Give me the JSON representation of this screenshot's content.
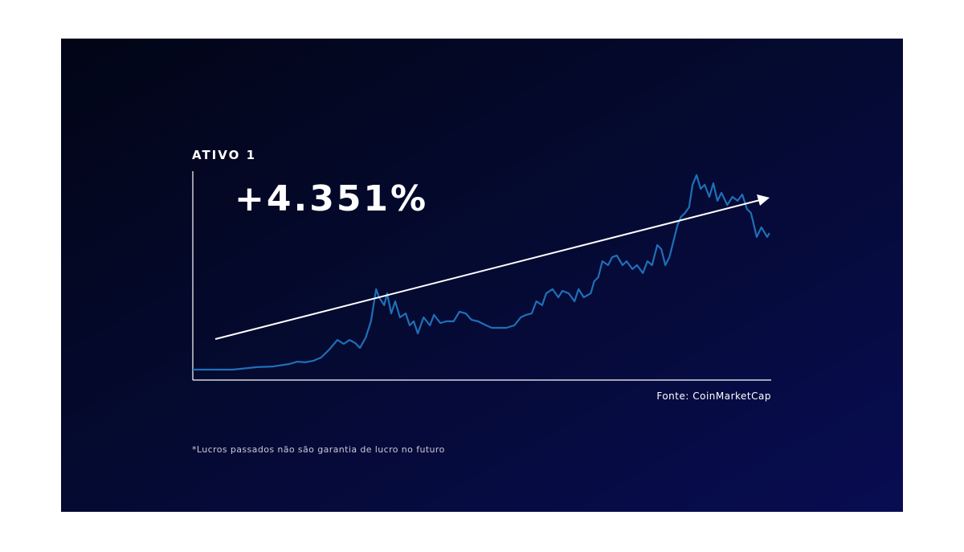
{
  "chart_data": {
    "type": "line",
    "title": "ATIVO 1",
    "annotation": "+4.351%",
    "source": "Fonte: CoinMarketCap",
    "footnote": "*Lucros passados não são garantia de lucro no futuro",
    "xlim": [
      0,
      100
    ],
    "ylim": [
      0,
      100
    ],
    "series": [
      {
        "color": "#1f6fb8",
        "x": [
          0,
          6.9,
          8.3,
          11.1,
          13.9,
          16.7,
          18.1,
          19.4,
          20.8,
          22.2,
          23.6,
          25,
          26.1,
          27.1,
          28.1,
          28.9,
          29.9,
          30.8,
          31.7,
          32.2,
          33.1,
          33.6,
          34.3,
          35,
          35.8,
          36.8,
          37.5,
          38.2,
          38.9,
          39.9,
          41,
          41.7,
          42.8,
          43.8,
          45.1,
          46.1,
          47.2,
          48.2,
          49.3,
          50.7,
          51.7,
          54.2,
          55.6,
          56.7,
          57.6,
          58.6,
          59.4,
          60.4,
          61.1,
          62.2,
          63.2,
          63.9,
          65,
          66,
          66.7,
          67.6,
          68.8,
          69.4,
          70.1,
          70.8,
          71.8,
          72.5,
          73.3,
          74.3,
          75,
          76,
          76.8,
          77.8,
          78.6,
          79.4,
          80.3,
          81,
          81.7,
          82.4,
          83.1,
          83.8,
          84.4,
          85.1,
          85.8,
          86.4,
          87.1,
          87.8,
          88.5,
          89.3,
          90,
          90.7,
          91.4,
          92.4,
          93.3,
          94.2,
          95,
          95.8,
          96.5,
          97.5,
          98.3,
          99.3,
          99.7
        ],
        "values": [
          5,
          5,
          5.4,
          6.2,
          6.5,
          7.7,
          8.8,
          8.5,
          9.2,
          10.8,
          14.6,
          19.2,
          17.3,
          19.2,
          17.7,
          15.4,
          20.4,
          28.1,
          43.5,
          39.6,
          35.8,
          41.5,
          31.9,
          37.7,
          30,
          31.9,
          26.2,
          28.1,
          22.3,
          30,
          26.2,
          31.2,
          27.3,
          28.1,
          28.1,
          32.7,
          31.9,
          28.8,
          28.1,
          26.2,
          25,
          25,
          26.2,
          30,
          31.2,
          31.9,
          37.7,
          35.8,
          41.5,
          43.5,
          39.6,
          42.7,
          41.5,
          37.7,
          43.5,
          39.6,
          41.5,
          47.3,
          49.2,
          56.9,
          55,
          58.8,
          59.6,
          55,
          56.9,
          53.1,
          55,
          51.2,
          56.9,
          55,
          64.6,
          62.7,
          55,
          58.8,
          66.5,
          74.2,
          78.1,
          80,
          82.7,
          93.5,
          98.1,
          91.5,
          93.5,
          87.7,
          94.2,
          85.8,
          89.6,
          83.8,
          87.7,
          85.8,
          88.8,
          81.9,
          80,
          68.5,
          73.1,
          68.5,
          70.4
        ]
      }
    ]
  }
}
